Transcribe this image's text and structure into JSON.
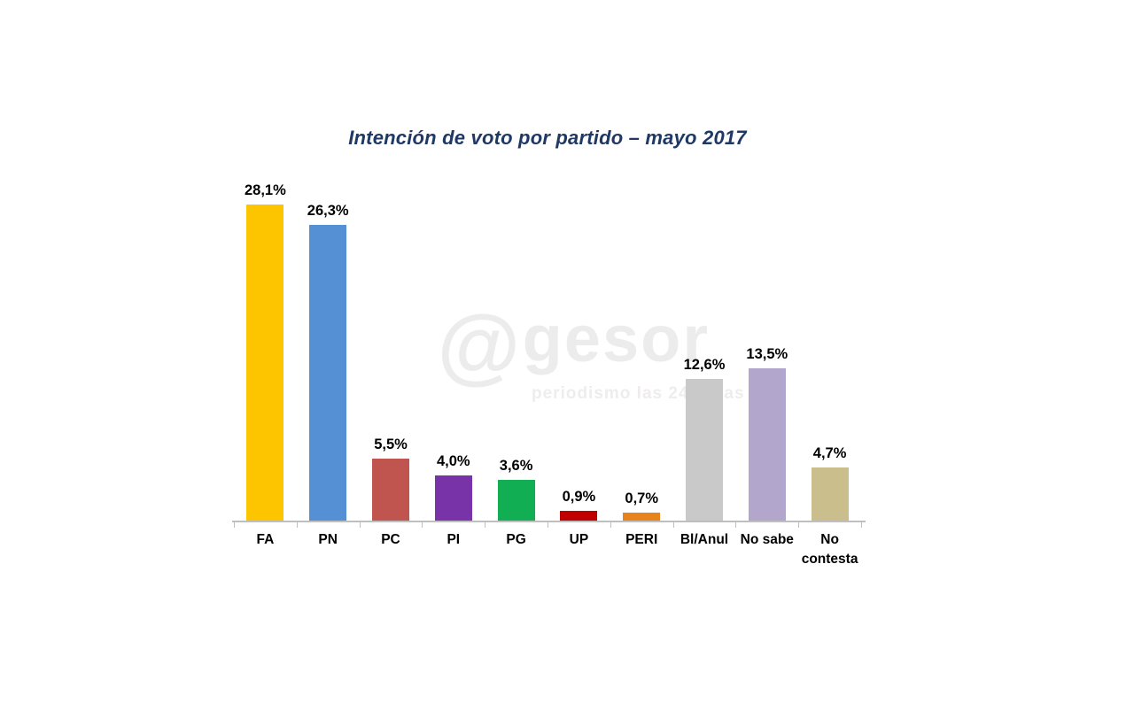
{
  "watermark": {
    "symbol": "@",
    "name": "gesor",
    "tagline": "periodismo las 24 horas",
    "color": "#ececec"
  },
  "chart_data": {
    "type": "bar",
    "title": "Intención de voto por partido – mayo 2017",
    "title_color": "#1f3864",
    "categories": [
      "FA",
      "PN",
      "PC",
      "PI",
      "PG",
      "UP",
      "PERI",
      "Bl/Anul",
      "No sabe",
      "No contesta"
    ],
    "values": [
      28.1,
      26.3,
      5.5,
      4.0,
      3.6,
      0.9,
      0.7,
      12.6,
      13.5,
      4.7
    ],
    "value_labels": [
      "28,1%",
      "26,3%",
      "5,5%",
      "4,0%",
      "3,6%",
      "0,9%",
      "0,7%",
      "12,6%",
      "13,5%",
      "4,7%"
    ],
    "bar_colors": [
      "#fdc400",
      "#5590d5",
      "#c0554f",
      "#7833a8",
      "#12ae54",
      "#c00000",
      "#e8821a",
      "#c9c9c9",
      "#b3a6cc",
      "#c9be8c"
    ],
    "xlabel": "",
    "ylabel": "",
    "ylim": [
      0,
      29.2
    ],
    "grid": false,
    "legend": "none",
    "axis_color": "#bfbfbf",
    "value_label_color": "#000000",
    "decimal_separator": ","
  }
}
